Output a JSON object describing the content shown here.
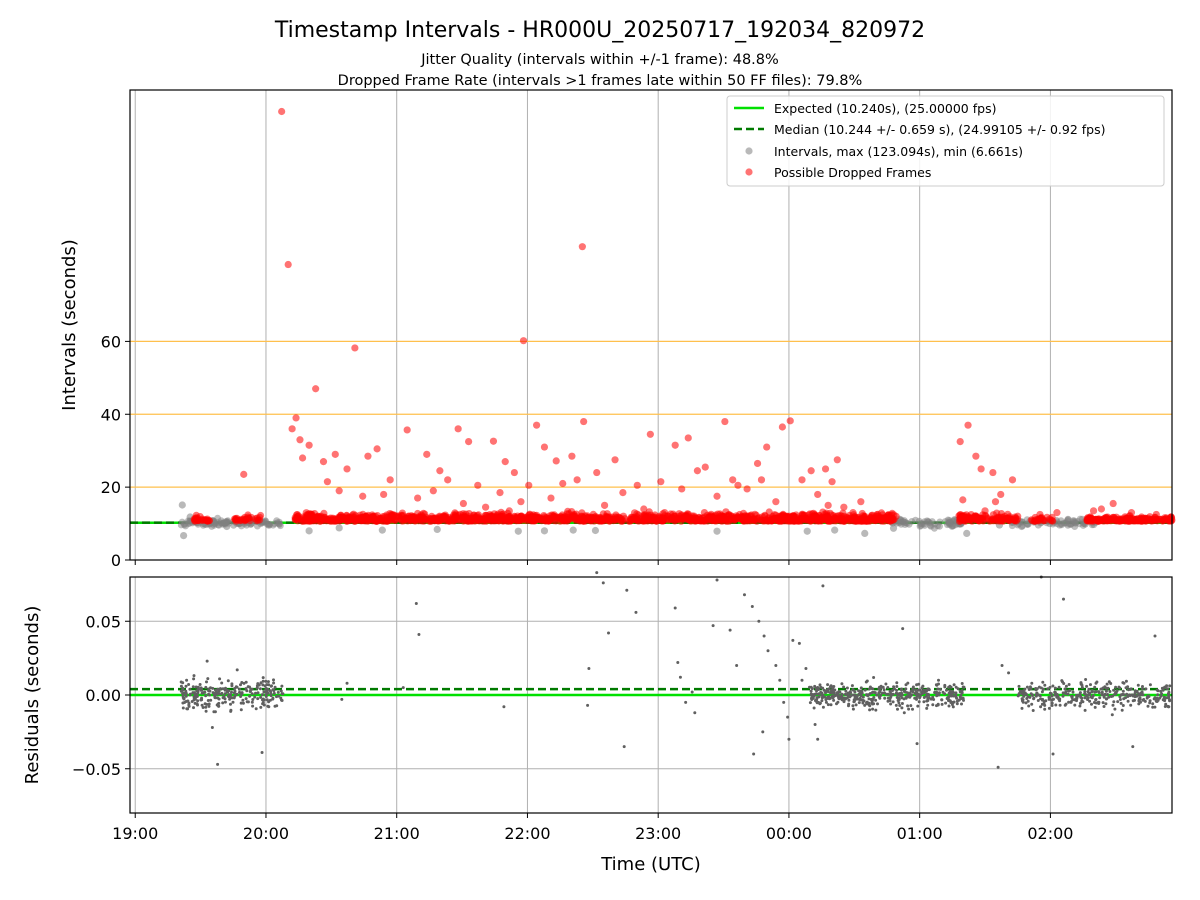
{
  "chart_data": [
    {
      "type": "scatter",
      "title": "Timestamp Intervals - HR000U_20250717_192034_820972",
      "subtitle_lines": [
        "Jitter Quality (intervals within +/-1 frame): 48.8%",
        "Dropped Frame Rate (intervals >1 frames late within 50 FF files): 79.8%"
      ],
      "ylabel": "Intervals (seconds)",
      "ylim": [
        0,
        129
      ],
      "yticks": [
        0,
        20,
        40,
        60
      ],
      "ytick_labels": [
        "0",
        "20",
        "40",
        "60"
      ],
      "x_range_hours": [
        18.96,
        26.93
      ],
      "grid": "vertical lines at hour ticks; horizontal reference lines at 20, 40, 60",
      "hlines": [
        {
          "y": 20,
          "color": "#ffc04d"
        },
        {
          "y": 40,
          "color": "#ffc04d"
        },
        {
          "y": 60,
          "color": "#ffc04d"
        }
      ],
      "expected_line": {
        "y": 10.24,
        "color": "#00e000"
      },
      "median_line": {
        "y": 10.244,
        "color": "#007a00",
        "dash": "dashed"
      },
      "legend_position": "top-right",
      "legend": [
        {
          "label": "Expected (10.240s), (25.00000 fps)",
          "kind": "line",
          "color": "#00e000"
        },
        {
          "label": "Median (10.244 +/- 0.659 s), (24.99105 +/- 0.92 fps)",
          "kind": "dashed-line",
          "color": "#007a00"
        },
        {
          "label": "Intervals, max (123.094s), min (6.661s)",
          "kind": "marker",
          "color": "#808080"
        },
        {
          "label": "Possible Dropped Frames",
          "kind": "marker",
          "color": "#ff0000"
        }
      ],
      "series": [
        {
          "name": "Possible Dropped Frames (outliers)",
          "color": "#ff0000",
          "points": [
            [
              20.12,
              123.1
            ],
            [
              20.17,
              81.1
            ],
            [
              20.23,
              39.0
            ],
            [
              20.2,
              36.0
            ],
            [
              20.26,
              33.0
            ],
            [
              20.38,
              47.0
            ],
            [
              20.68,
              58.2
            ],
            [
              21.97,
              60.2
            ],
            [
              22.42,
              86.0
            ],
            [
              20.28,
              28.0
            ],
            [
              20.33,
              31.5
            ],
            [
              20.44,
              27.0
            ],
            [
              20.53,
              29.0
            ],
            [
              20.62,
              25.0
            ],
            [
              20.78,
              28.5
            ],
            [
              20.85,
              30.5
            ],
            [
              20.95,
              22.0
            ],
            [
              21.08,
              35.7
            ],
            [
              21.23,
              29.0
            ],
            [
              21.33,
              24.5
            ],
            [
              21.47,
              36.0
            ],
            [
              21.55,
              32.5
            ],
            [
              21.62,
              20.5
            ],
            [
              21.74,
              32.6
            ],
            [
              21.83,
              27.0
            ],
            [
              21.9,
              24.0
            ],
            [
              22.07,
              37.0
            ],
            [
              22.13,
              31.0
            ],
            [
              22.22,
              27.2
            ],
            [
              22.34,
              28.5
            ],
            [
              22.43,
              38.0
            ],
            [
              22.53,
              24.0
            ],
            [
              22.67,
              27.5
            ],
            [
              22.84,
              20.5
            ],
            [
              22.94,
              34.5
            ],
            [
              23.13,
              31.5
            ],
            [
              23.23,
              33.5
            ],
            [
              23.36,
              25.5
            ],
            [
              23.51,
              38.0
            ],
            [
              23.61,
              20.5
            ],
            [
              23.76,
              26.5
            ],
            [
              23.83,
              31.0
            ],
            [
              23.95,
              36.5
            ],
            [
              24.01,
              38.2
            ],
            [
              24.17,
              24.5
            ],
            [
              24.28,
              25.0
            ],
            [
              24.37,
              27.5
            ],
            [
              24.55,
              16.0
            ],
            [
              25.31,
              32.5
            ],
            [
              25.37,
              37.0
            ],
            [
              25.43,
              28.5
            ],
            [
              25.47,
              25.0
            ],
            [
              25.56,
              24.0
            ],
            [
              25.62,
              18.0
            ],
            [
              25.71,
              22.0
            ],
            [
              19.83,
              23.5
            ],
            [
              20.47,
              21.5
            ],
            [
              20.56,
              19.0
            ],
            [
              20.74,
              17.5
            ],
            [
              20.9,
              18.0
            ],
            [
              21.16,
              17.0
            ],
            [
              21.28,
              19.0
            ],
            [
              21.39,
              22.0
            ],
            [
              21.51,
              15.5
            ],
            [
              21.68,
              14.5
            ],
            [
              21.79,
              18.5
            ],
            [
              21.95,
              16.0
            ],
            [
              22.01,
              20.5
            ],
            [
              22.18,
              17.0
            ],
            [
              22.27,
              21.0
            ],
            [
              22.38,
              22.0
            ],
            [
              22.59,
              15.0
            ],
            [
              22.73,
              18.5
            ],
            [
              22.89,
              14.0
            ],
            [
              23.02,
              21.5
            ],
            [
              23.18,
              19.5
            ],
            [
              23.3,
              24.5
            ],
            [
              23.45,
              17.5
            ],
            [
              23.57,
              22.0
            ],
            [
              23.68,
              19.5
            ],
            [
              23.79,
              22.0
            ],
            [
              23.9,
              16.0
            ],
            [
              24.1,
              22.0
            ],
            [
              24.22,
              18.0
            ],
            [
              24.33,
              21.5
            ],
            [
              24.42,
              14.5
            ],
            [
              25.33,
              16.5
            ],
            [
              25.5,
              13.5
            ],
            [
              25.58,
              16.0
            ],
            [
              25.92,
              12.5
            ],
            [
              26.05,
              13.0
            ],
            [
              26.39,
              14.0
            ],
            [
              26.48,
              15.5
            ],
            [
              26.62,
              13.0
            ],
            [
              26.81,
              12.5
            ],
            [
              26.33,
              13.5
            ],
            [
              25.75,
              12.0
            ],
            [
              24.68,
              12.0
            ],
            [
              24.49,
              13.0
            ],
            [
              24.3,
              15.0
            ]
          ]
        },
        {
          "name": "Intervals (gray outliers)",
          "color": "#808080",
          "points": [
            [
              19.36,
              15.1
            ],
            [
              19.37,
              6.7
            ],
            [
              19.42,
              11.8
            ],
            [
              19.52,
              10.0
            ],
            [
              19.7,
              9.2
            ],
            [
              19.97,
              10.5
            ],
            [
              20.33,
              8.0
            ],
            [
              20.56,
              8.8
            ],
            [
              20.89,
              8.2
            ],
            [
              21.31,
              8.4
            ],
            [
              21.93,
              7.9
            ],
            [
              22.13,
              8.0
            ],
            [
              22.35,
              8.2
            ],
            [
              22.52,
              8.1
            ],
            [
              23.45,
              7.9
            ],
            [
              24.14,
              7.9
            ],
            [
              24.35,
              8.2
            ],
            [
              24.58,
              7.3
            ],
            [
              24.8,
              8.7
            ],
            [
              25.01,
              9.5
            ],
            [
              25.36,
              7.3
            ],
            [
              25.61,
              9.6
            ],
            [
              25.78,
              9.2
            ]
          ]
        }
      ]
    },
    {
      "type": "scatter",
      "xlabel": "Time (UTC)",
      "ylabel": "Residuals (seconds)",
      "ylim": [
        -0.08,
        0.08
      ],
      "yticks": [
        -0.05,
        0.0,
        0.05
      ],
      "ytick_labels": [
        "−0.05",
        "0.00",
        "0.05"
      ],
      "xticks_hours": [
        19,
        20,
        21,
        22,
        23,
        24,
        25,
        26
      ],
      "xtick_labels": [
        "19:00",
        "20:00",
        "21:00",
        "22:00",
        "23:00",
        "00:00",
        "01:00",
        "02:00"
      ],
      "grid": "on",
      "expected_line": {
        "y": 0.0,
        "color": "#00e000"
      },
      "median_line": {
        "y": 0.004,
        "color": "#007a00",
        "dash": "dashed"
      },
      "series": [
        {
          "name": "Residuals",
          "color": "#606060",
          "clusters": [
            {
              "x_range": [
                19.35,
                20.13
              ],
              "count": 260,
              "spread": 0.009
            },
            {
              "x_range": [
                24.15,
                25.34
              ],
              "count": 420,
              "spread": 0.008
            },
            {
              "x_range": [
                25.75,
                26.93
              ],
              "count": 340,
              "spread": 0.008
            }
          ],
          "points": [
            [
              19.42,
              0.0
            ],
            [
              19.55,
              0.023
            ],
            [
              19.63,
              -0.047
            ],
            [
              19.97,
              -0.039
            ],
            [
              19.78,
              0.017
            ],
            [
              19.59,
              -0.022
            ],
            [
              20.62,
              0.008
            ],
            [
              20.58,
              -0.003
            ],
            [
              21.05,
              0.005
            ],
            [
              21.15,
              0.062
            ],
            [
              21.17,
              0.041
            ],
            [
              21.82,
              -0.008
            ],
            [
              22.46,
              -0.007
            ],
            [
              22.47,
              0.018
            ],
            [
              22.53,
              0.083
            ],
            [
              22.58,
              0.076
            ],
            [
              22.62,
              0.042
            ],
            [
              22.74,
              -0.035
            ],
            [
              22.76,
              0.071
            ],
            [
              22.83,
              0.056
            ],
            [
              23.13,
              0.059
            ],
            [
              23.15,
              0.022
            ],
            [
              23.17,
              0.012
            ],
            [
              23.21,
              -0.005
            ],
            [
              23.26,
              0.002
            ],
            [
              23.28,
              -0.012
            ],
            [
              23.42,
              0.047
            ],
            [
              23.45,
              0.078
            ],
            [
              23.55,
              0.044
            ],
            [
              23.6,
              0.02
            ],
            [
              23.66,
              0.068
            ],
            [
              23.72,
              0.06
            ],
            [
              23.77,
              0.05
            ],
            [
              23.81,
              0.04
            ],
            [
              23.84,
              0.03
            ],
            [
              23.9,
              0.02
            ],
            [
              23.93,
              0.01
            ],
            [
              23.96,
              -0.005
            ],
            [
              23.99,
              -0.015
            ],
            [
              23.73,
              -0.04
            ],
            [
              23.8,
              -0.025
            ],
            [
              24.03,
              0.037
            ],
            [
              24.08,
              0.035
            ],
            [
              24.26,
              0.074
            ],
            [
              24.22,
              -0.03
            ],
            [
              24.0,
              -0.03
            ],
            [
              24.1,
              0.01
            ],
            [
              24.13,
              0.018
            ],
            [
              24.2,
              -0.02
            ],
            [
              24.87,
              0.045
            ],
            [
              24.98,
              -0.033
            ],
            [
              25.6,
              -0.049
            ],
            [
              25.63,
              0.02
            ],
            [
              25.68,
              0.015
            ],
            [
              26.1,
              0.065
            ],
            [
              26.63,
              -0.035
            ],
            [
              26.8,
              0.04
            ],
            [
              26.02,
              -0.04
            ],
            [
              25.93,
              0.08
            ]
          ]
        }
      ]
    }
  ]
}
